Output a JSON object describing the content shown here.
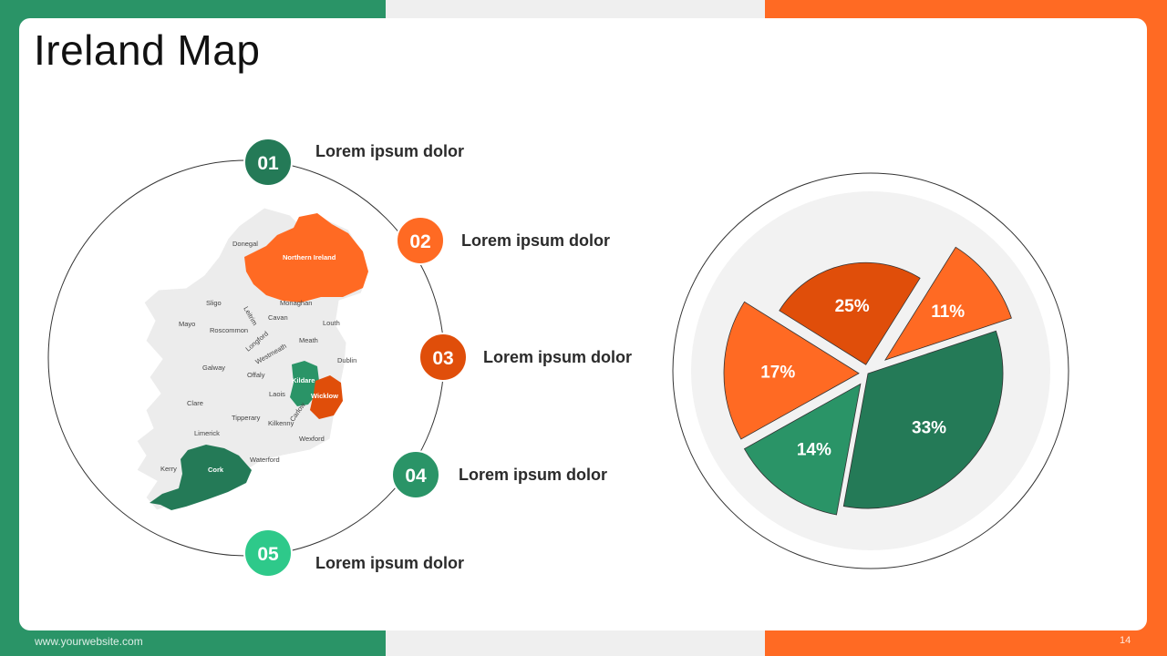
{
  "title": "Ireland Map",
  "footer": {
    "website": "www.yourwebsite.com",
    "page_number": "14"
  },
  "colors": {
    "green": "#2a9467",
    "dark_green": "#247a57",
    "light_green": "#2ec98a",
    "orange": "#ff6a23",
    "dark_orange": "#e04e0a"
  },
  "map": {
    "highlight_regions": [
      "Northern Ireland",
      "Kildare",
      "Wicklow",
      "Cork"
    ],
    "counties": [
      "Donegal",
      "Sligo",
      "Leitrim",
      "Monaghan",
      "Mayo",
      "Roscommon",
      "Cavan",
      "Louth",
      "Longford",
      "Meath",
      "Westmeath",
      "Dublin",
      "Galway",
      "Offaly",
      "Laois",
      "Clare",
      "Tipperary",
      "Kilkenny",
      "Carlow",
      "Limerick",
      "Wexford",
      "Waterford",
      "Kerry"
    ]
  },
  "steps": [
    {
      "number": "01",
      "label": "Lorem ipsum dolor",
      "color": "#247a57"
    },
    {
      "number": "02",
      "label": "Lorem ipsum dolor",
      "color": "#ff6a23"
    },
    {
      "number": "03",
      "label": "Lorem ipsum dolor",
      "color": "#e04e0a"
    },
    {
      "number": "04",
      "label": "Lorem ipsum dolor",
      "color": "#2a9467"
    },
    {
      "number": "05",
      "label": "Lorem ipsum dolor",
      "color": "#2ec98a"
    }
  ],
  "chart_data": {
    "type": "pie",
    "values": [
      25,
      11,
      33,
      14,
      17
    ],
    "labels": [
      "25%",
      "11%",
      "33%",
      "14%",
      "17%"
    ],
    "colors": [
      "#e04e0a",
      "#ff6a23",
      "#247a57",
      "#2a9467",
      "#ff6a23"
    ]
  }
}
